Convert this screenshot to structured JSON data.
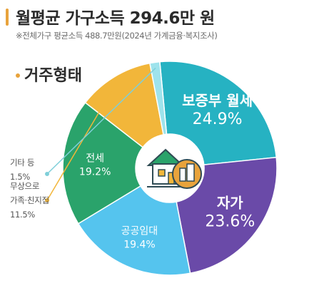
{
  "header": {
    "title": "월평균 가구소득 294.6만 원",
    "note": "※전체가구 평균소득 488.7만원(2024년 가계금융·복지조사)"
  },
  "section": {
    "title": "거주형태"
  },
  "colors": {
    "accent": "#e8a33c",
    "icon_ring": "#e8a33c",
    "icon_inner": "#2f4b54"
  },
  "icon": {
    "name": "house-building-icon"
  },
  "chart_data": {
    "type": "pie",
    "title": "거주형태",
    "unit": "%",
    "slices": [
      {
        "name": "보증부 월세",
        "value": 24.9,
        "color": "#26b2c2",
        "label_lines": [
          "보증부 월세",
          "24.9%"
        ],
        "label_color": "#ffffff"
      },
      {
        "name": "자가",
        "value": 23.6,
        "color": "#6a4aa8",
        "label_lines": [
          "자가",
          "23.6%"
        ],
        "label_color": "#ffffff"
      },
      {
        "name": "공공임대",
        "value": 19.4,
        "color": "#55c4ee",
        "label_lines": [
          "공공임대",
          "19.4%"
        ],
        "label_color": "#ffffff"
      },
      {
        "name": "전세",
        "value": 19.2,
        "color": "#2aa36b",
        "label_lines": [
          "전세",
          "19.2%"
        ],
        "label_color": "#ffffff"
      },
      {
        "name": "무상으로 가족·친지집",
        "value": 11.5,
        "color": "#f2b63a",
        "external_lines": [
          "무상으로",
          "가족·친지집",
          "11.5%"
        ],
        "label_color": "#555555"
      },
      {
        "name": "기타 등",
        "value": 1.5,
        "color": "#9ee3ec",
        "external_lines": [
          "기타 등",
          "1.5%"
        ],
        "label_color": "#555555"
      }
    ]
  }
}
